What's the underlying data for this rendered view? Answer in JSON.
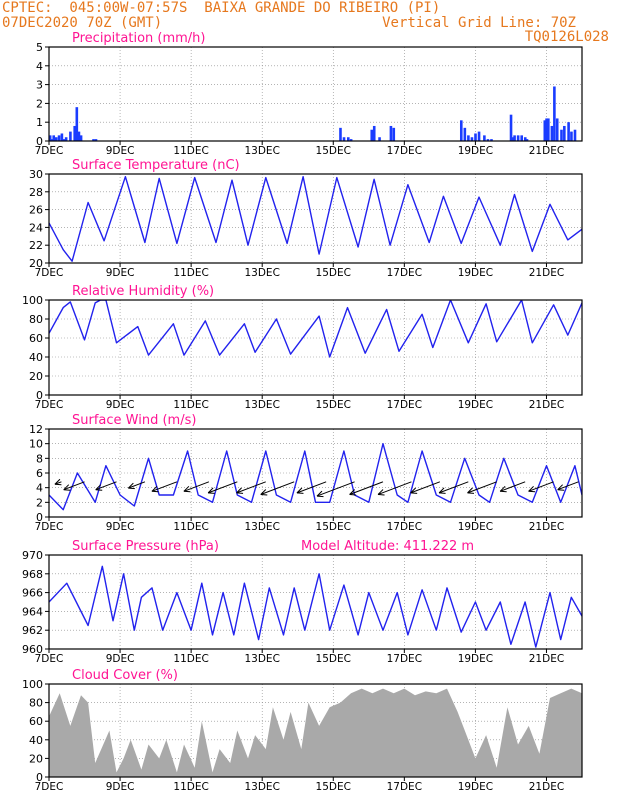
{
  "header": {
    "line1_left": "CPTEC:  045:00W-07:57S  BAIXA GRANDE DO RIBEIRO (PI)",
    "line2_left": "07DEC2020 70Z (GMT)",
    "line2_right": "Vertical Grid Line: 70Z",
    "line3_right": "TQ0126L028"
  },
  "colors": {
    "header_text": "#e6781e",
    "panel_title": "#ff1493",
    "series_line": "#2222ee",
    "bars": "#1a3cff",
    "cloud_fill": "#a9a9a9",
    "wind_arrow": "#000000"
  },
  "x_axis": {
    "tick_labels": [
      "7DEC",
      "9DEC",
      "11DEC",
      "13DEC",
      "15DEC",
      "17DEC",
      "19DEC",
      "21DEC"
    ],
    "tick_days": [
      0,
      2,
      4,
      6,
      8,
      10,
      12,
      14
    ],
    "range_days": [
      0,
      15
    ],
    "grid": "dotted vertical lines at tick days"
  },
  "chart_data": [
    {
      "type": "bar",
      "title": "Precipitation (mm/h)",
      "ylim": [
        0,
        5
      ],
      "yticks": [
        0,
        1,
        2,
        3,
        4,
        5
      ],
      "x_days": [
        0.03,
        0.08,
        0.13,
        0.2,
        0.28,
        0.36,
        0.42,
        0.48,
        0.6,
        0.72,
        0.78,
        0.84,
        0.9,
        1.25,
        1.32,
        8.2,
        8.3,
        8.42,
        8.5,
        9.08,
        9.15,
        9.3,
        9.62,
        9.7,
        11.6,
        11.7,
        11.8,
        11.9,
        12.0,
        12.1,
        12.25,
        12.35,
        12.45,
        13.0,
        13.05,
        13.1,
        13.2,
        13.3,
        13.4,
        13.45,
        13.95,
        14.0,
        14.05,
        14.15,
        14.22,
        14.3,
        14.42,
        14.5,
        14.62,
        14.7,
        14.8
      ],
      "values": [
        0.3,
        0.1,
        0.3,
        0.2,
        0.3,
        0.4,
        0.1,
        0.2,
        0.5,
        0.8,
        1.8,
        0.5,
        0.3,
        0.1,
        0.1,
        0.7,
        0.2,
        0.2,
        0.1,
        0.6,
        0.8,
        0.2,
        0.8,
        0.7,
        1.1,
        0.7,
        0.3,
        0.2,
        0.4,
        0.5,
        0.3,
        0.1,
        0.1,
        1.4,
        0.2,
        0.3,
        0.3,
        0.3,
        0.2,
        0.1,
        1.1,
        1.2,
        1.2,
        0.8,
        2.9,
        1.2,
        0.6,
        0.8,
        1.0,
        0.5,
        0.6
      ]
    },
    {
      "type": "line",
      "title": "Surface Temperature (nC)",
      "ylim": [
        20,
        30
      ],
      "yticks": [
        20,
        22,
        24,
        26,
        28,
        30
      ],
      "x_days": [
        0,
        0.4,
        0.65,
        1.1,
        1.55,
        2.15,
        2.7,
        3.1,
        3.6,
        4.1,
        4.7,
        5.15,
        5.6,
        6.1,
        6.7,
        7.15,
        7.6,
        8.1,
        8.7,
        9.15,
        9.6,
        10.1,
        10.7,
        11.1,
        11.6,
        12.1,
        12.7,
        13.1,
        13.6,
        14.1,
        14.6,
        15.0
      ],
      "series": [
        {
          "values": [
            24.5,
            21.5,
            20.2,
            26.8,
            22.5,
            29.7,
            22.3,
            29.5,
            22.2,
            29.6,
            22.3,
            29.3,
            22.0,
            29.6,
            22.2,
            29.7,
            21.0,
            29.6,
            21.8,
            29.4,
            22.0,
            28.8,
            22.3,
            27.5,
            22.2,
            27.4,
            22.0,
            27.7,
            21.3,
            26.6,
            22.6,
            23.8
          ]
        }
      ]
    },
    {
      "type": "line",
      "title": "Relative Humidity (%)",
      "ylim": [
        0,
        100
      ],
      "yticks": [
        0,
        20,
        40,
        60,
        80,
        100
      ],
      "x_days": [
        0,
        0.4,
        0.6,
        1.0,
        1.3,
        1.45,
        1.6,
        1.9,
        2.5,
        2.8,
        3.5,
        3.8,
        4.4,
        4.8,
        5.5,
        5.8,
        6.4,
        6.8,
        7.6,
        7.9,
        8.4,
        8.9,
        9.5,
        9.85,
        10.5,
        10.8,
        11.3,
        11.8,
        12.3,
        12.6,
        13.3,
        13.6,
        14.2,
        14.6,
        15.0
      ],
      "series": [
        {
          "values": [
            65,
            92,
            98,
            58,
            97,
            100,
            100,
            55,
            72,
            42,
            75,
            42,
            78,
            42,
            75,
            45,
            80,
            43,
            83,
            40,
            92,
            44,
            90,
            46,
            85,
            50,
            100,
            55,
            96,
            56,
            100,
            55,
            95,
            63,
            97
          ]
        }
      ]
    },
    {
      "type": "line",
      "title": "Surface Wind (m/s)",
      "ylim": [
        0,
        12
      ],
      "yticks": [
        0,
        2,
        4,
        6,
        8,
        10,
        12
      ],
      "x_days": [
        0,
        0.4,
        0.8,
        1.3,
        1.6,
        2.0,
        2.4,
        2.8,
        3.1,
        3.5,
        3.9,
        4.2,
        4.6,
        5.0,
        5.3,
        5.7,
        6.1,
        6.4,
        6.8,
        7.2,
        7.5,
        7.9,
        8.3,
        8.6,
        9.0,
        9.4,
        9.8,
        10.1,
        10.5,
        10.9,
        11.3,
        11.7,
        12.1,
        12.4,
        12.8,
        13.2,
        13.6,
        14.0,
        14.4,
        14.8,
        15.0
      ],
      "series": [
        {
          "values": [
            3,
            1,
            6,
            2,
            7,
            3,
            1.5,
            8,
            3,
            3,
            9,
            3,
            2,
            9,
            3,
            2,
            9,
            3,
            2,
            9,
            2,
            2,
            9,
            3,
            2,
            10,
            3,
            2,
            9,
            3,
            2,
            8,
            3,
            2,
            8,
            3,
            2,
            7,
            2,
            7,
            3
          ]
        }
      ],
      "wind_arrows": {
        "x_days": [
          0.35,
          1.0,
          1.9,
          2.7,
          3.6,
          4.5,
          5.3,
          6.1,
          6.9,
          7.8,
          8.6,
          9.4,
          10.2,
          11.0,
          11.8,
          12.6,
          13.4,
          14.2,
          14.9
        ],
        "magnitude": [
          0.6,
          4,
          4,
          3,
          5,
          5,
          6,
          6,
          7,
          6,
          8,
          7,
          7,
          6,
          6,
          6,
          5,
          5,
          4
        ]
      }
    },
    {
      "type": "line",
      "title": "Surface Pressure (hPa)",
      "annotation": "Model Altitude: 411.222 m",
      "ylim": [
        960,
        970
      ],
      "yticks": [
        960,
        962,
        964,
        966,
        968,
        970
      ],
      "x_days": [
        0,
        0.5,
        1.1,
        1.5,
        1.8,
        2.1,
        2.4,
        2.6,
        2.9,
        3.2,
        3.6,
        4.0,
        4.3,
        4.6,
        4.9,
        5.2,
        5.5,
        5.9,
        6.2,
        6.6,
        6.9,
        7.2,
        7.6,
        7.9,
        8.3,
        8.7,
        9.0,
        9.4,
        9.8,
        10.1,
        10.5,
        10.9,
        11.2,
        11.6,
        12.0,
        12.3,
        12.7,
        13.0,
        13.4,
        13.7,
        14.1,
        14.4,
        14.7,
        15.0
      ],
      "series": [
        {
          "values": [
            965,
            967,
            962.5,
            968.8,
            963,
            968,
            962,
            965.5,
            966.5,
            962,
            966,
            962,
            967,
            961.5,
            966,
            961.5,
            967,
            961,
            966.5,
            961.5,
            966.5,
            962,
            968,
            962,
            966.8,
            961.5,
            966,
            962,
            966,
            961.5,
            966.3,
            962,
            966.5,
            961.8,
            965,
            962,
            965,
            960.5,
            965,
            960.2,
            966,
            961,
            965.5,
            963.5
          ]
        }
      ]
    },
    {
      "type": "area",
      "title": "Cloud Cover (%)",
      "ylim": [
        0,
        100
      ],
      "yticks": [
        0,
        20,
        40,
        60,
        80,
        100
      ],
      "x_days": [
        0,
        0.3,
        0.6,
        0.9,
        1.1,
        1.3,
        1.7,
        1.9,
        2.1,
        2.3,
        2.6,
        2.8,
        3.1,
        3.3,
        3.6,
        3.8,
        4.1,
        4.3,
        4.6,
        4.8,
        5.1,
        5.3,
        5.6,
        5.8,
        6.1,
        6.3,
        6.6,
        6.8,
        7.1,
        7.3,
        7.6,
        7.9,
        8.2,
        8.5,
        8.8,
        9.1,
        9.4,
        9.7,
        10.0,
        10.3,
        10.6,
        10.9,
        11.2,
        11.5,
        11.8,
        12.0,
        12.3,
        12.6,
        12.9,
        13.2,
        13.5,
        13.8,
        14.1,
        14.4,
        14.7,
        15.0
      ],
      "series": [
        {
          "values": [
            65,
            90,
            55,
            88,
            80,
            15,
            50,
            5,
            20,
            40,
            8,
            35,
            20,
            40,
            5,
            35,
            10,
            60,
            5,
            30,
            15,
            50,
            20,
            45,
            30,
            75,
            40,
            70,
            30,
            80,
            55,
            75,
            80,
            90,
            95,
            90,
            95,
            90,
            95,
            88,
            92,
            90,
            95,
            70,
            40,
            20,
            45,
            10,
            75,
            35,
            55,
            25,
            85,
            90,
            95,
            90
          ]
        }
      ]
    }
  ]
}
